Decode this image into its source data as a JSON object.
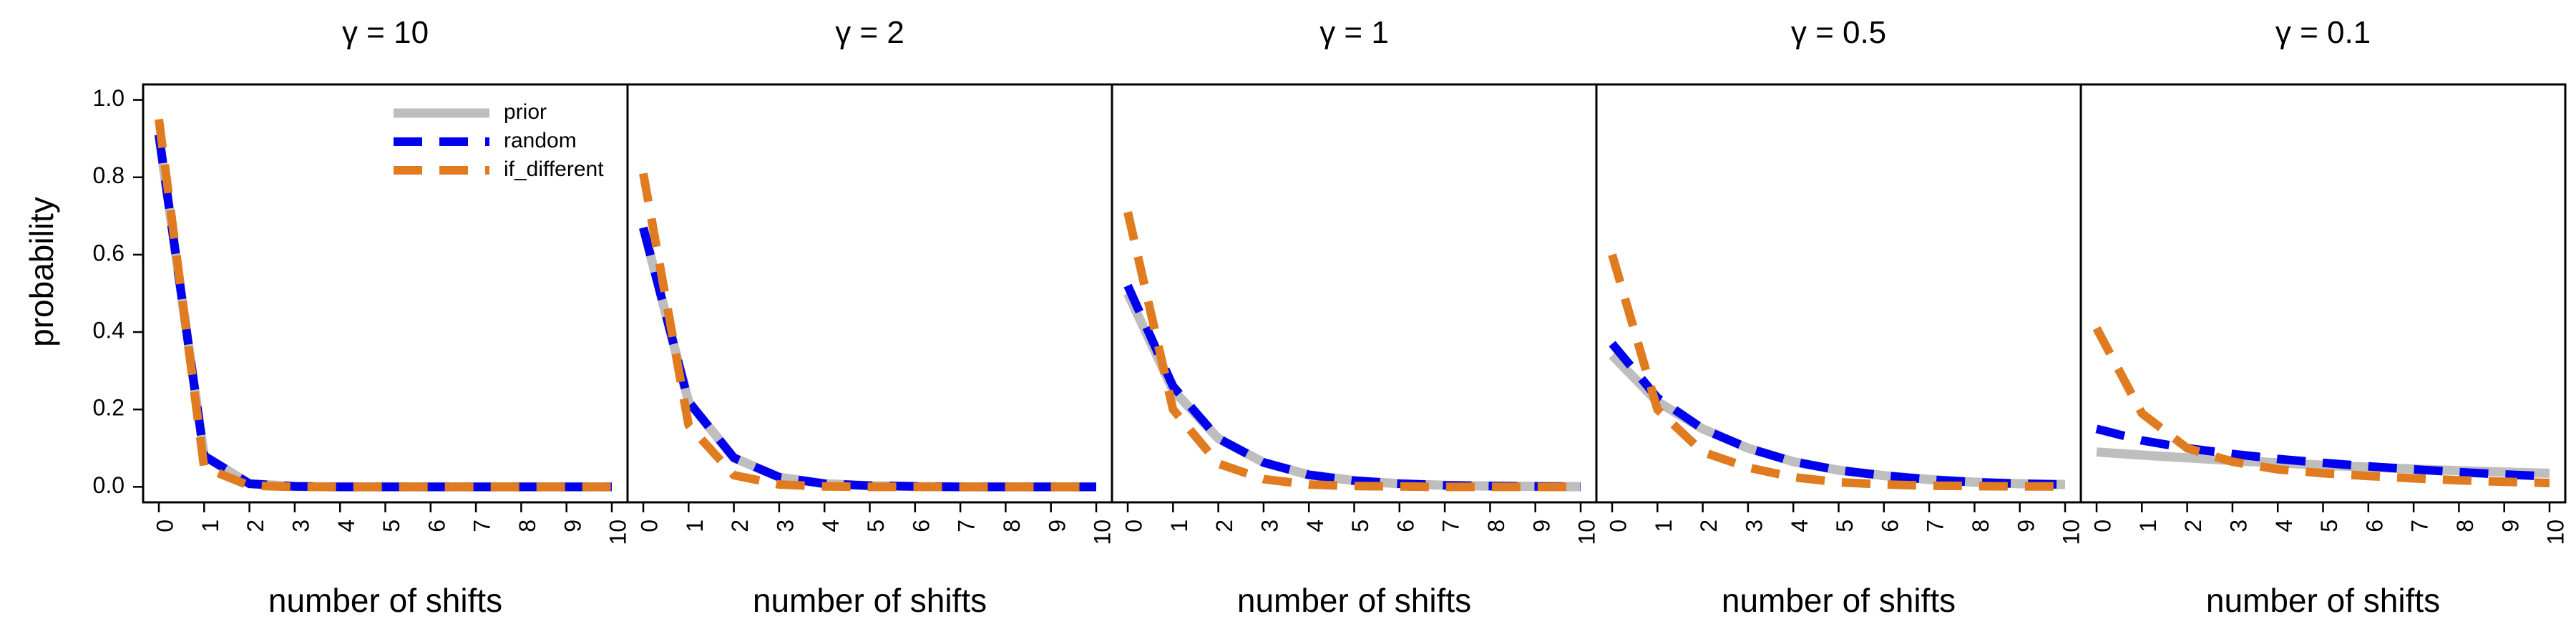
{
  "colors": {
    "prior": "#bebebe",
    "random": "#0000ee",
    "if_different": "#e07b20",
    "frame": "#000000"
  },
  "legend": {
    "placement": "top-right of first panel",
    "entries": [
      "prior",
      "random",
      "if_different"
    ]
  },
  "ylabel": "probability",
  "xlabel": "number of shifts",
  "chart_data": [
    {
      "type": "line",
      "title": "γ = 10",
      "xlabel": "number of shifts",
      "ylabel": "probability",
      "x": [
        0,
        1,
        2,
        3,
        4,
        5,
        6,
        7,
        8,
        9,
        10
      ],
      "ylim": [
        -0.04,
        1.04
      ],
      "yticks": [
        "0.0",
        "0.2",
        "0.4",
        "0.6",
        "0.8",
        "1.0"
      ],
      "xticks": [
        "0",
        "1",
        "2",
        "3",
        "4",
        "5",
        "6",
        "7",
        "8",
        "9",
        "10"
      ],
      "series": [
        {
          "name": "prior",
          "style": "solid",
          "values": [
            0.91,
            0.08,
            0.008,
            0.001,
            0,
            0,
            0,
            0,
            0,
            0,
            0
          ]
        },
        {
          "name": "random",
          "style": "dashed",
          "values": [
            0.91,
            0.08,
            0.008,
            0.001,
            0,
            0,
            0,
            0,
            0,
            0,
            0
          ]
        },
        {
          "name": "if_different",
          "style": "dashed",
          "values": [
            0.95,
            0.05,
            0.003,
            0,
            0,
            0,
            0,
            0,
            0,
            0,
            0
          ]
        }
      ]
    },
    {
      "type": "line",
      "title": "γ = 2",
      "xlabel": "number of shifts",
      "ylabel": "probability",
      "x": [
        0,
        1,
        2,
        3,
        4,
        5,
        6,
        7,
        8,
        9,
        10
      ],
      "ylim": [
        -0.04,
        1.04
      ],
      "xticks": [
        "0",
        "1",
        "2",
        "3",
        "4",
        "5",
        "6",
        "7",
        "8",
        "9",
        "10"
      ],
      "series": [
        {
          "name": "prior",
          "style": "solid",
          "values": [
            0.67,
            0.22,
            0.075,
            0.025,
            0.008,
            0.003,
            0.001,
            0,
            0,
            0,
            0
          ]
        },
        {
          "name": "random",
          "style": "dashed",
          "values": [
            0.67,
            0.22,
            0.075,
            0.025,
            0.008,
            0.003,
            0.001,
            0,
            0,
            0,
            0
          ]
        },
        {
          "name": "if_different",
          "style": "dashed",
          "values": [
            0.81,
            0.16,
            0.03,
            0.006,
            0.001,
            0,
            0,
            0,
            0,
            0,
            0
          ]
        }
      ]
    },
    {
      "type": "line",
      "title": "γ = 1",
      "xlabel": "number of shifts",
      "ylabel": "probability",
      "x": [
        0,
        1,
        2,
        3,
        4,
        5,
        6,
        7,
        8,
        9,
        10
      ],
      "ylim": [
        -0.04,
        1.04
      ],
      "xticks": [
        "0",
        "1",
        "2",
        "3",
        "4",
        "5",
        "6",
        "7",
        "8",
        "9",
        "10"
      ],
      "series": [
        {
          "name": "prior",
          "style": "solid",
          "values": [
            0.5,
            0.25,
            0.125,
            0.063,
            0.031,
            0.016,
            0.008,
            0.004,
            0.002,
            0.001,
            0.0005
          ]
        },
        {
          "name": "random",
          "style": "dashed",
          "values": [
            0.52,
            0.26,
            0.125,
            0.063,
            0.031,
            0.016,
            0.008,
            0.004,
            0.002,
            0.001,
            0.0005
          ]
        },
        {
          "name": "if_different",
          "style": "dashed",
          "values": [
            0.71,
            0.2,
            0.06,
            0.02,
            0.006,
            0.002,
            0.001,
            0,
            0,
            0,
            0
          ]
        }
      ]
    },
    {
      "type": "line",
      "title": "γ = 0.5",
      "xlabel": "number of shifts",
      "ylabel": "probability",
      "x": [
        0,
        1,
        2,
        3,
        4,
        5,
        6,
        7,
        8,
        9,
        10
      ],
      "ylim": [
        -0.04,
        1.04
      ],
      "xticks": [
        "0",
        "1",
        "2",
        "3",
        "4",
        "5",
        "6",
        "7",
        "8",
        "9",
        "10"
      ],
      "series": [
        {
          "name": "prior",
          "style": "solid",
          "values": [
            0.34,
            0.22,
            0.15,
            0.1,
            0.065,
            0.043,
            0.029,
            0.019,
            0.012,
            0.008,
            0.006
          ]
        },
        {
          "name": "random",
          "style": "dashed",
          "values": [
            0.37,
            0.23,
            0.15,
            0.1,
            0.065,
            0.043,
            0.029,
            0.019,
            0.012,
            0.008,
            0.006
          ]
        },
        {
          "name": "if_different",
          "style": "dashed",
          "values": [
            0.6,
            0.2,
            0.09,
            0.05,
            0.025,
            0.012,
            0.006,
            0.003,
            0.002,
            0.001,
            0.001
          ]
        }
      ]
    },
    {
      "type": "line",
      "title": "γ = 0.1",
      "xlabel": "number of shifts",
      "ylabel": "probability",
      "x": [
        0,
        1,
        2,
        3,
        4,
        5,
        6,
        7,
        8,
        9,
        10
      ],
      "ylim": [
        -0.04,
        1.04
      ],
      "xticks": [
        "0",
        "1",
        "2",
        "3",
        "4",
        "5",
        "6",
        "7",
        "8",
        "9",
        "10"
      ],
      "series": [
        {
          "name": "prior",
          "style": "solid",
          "values": [
            0.09,
            0.082,
            0.075,
            0.068,
            0.062,
            0.056,
            0.051,
            0.046,
            0.042,
            0.038,
            0.035
          ]
        },
        {
          "name": "random",
          "style": "dashed",
          "values": [
            0.15,
            0.12,
            0.1,
            0.085,
            0.072,
            0.062,
            0.053,
            0.045,
            0.038,
            0.032,
            0.027
          ]
        },
        {
          "name": "if_different",
          "style": "dashed",
          "values": [
            0.41,
            0.19,
            0.1,
            0.065,
            0.045,
            0.035,
            0.028,
            0.022,
            0.017,
            0.013,
            0.01
          ]
        }
      ]
    }
  ]
}
